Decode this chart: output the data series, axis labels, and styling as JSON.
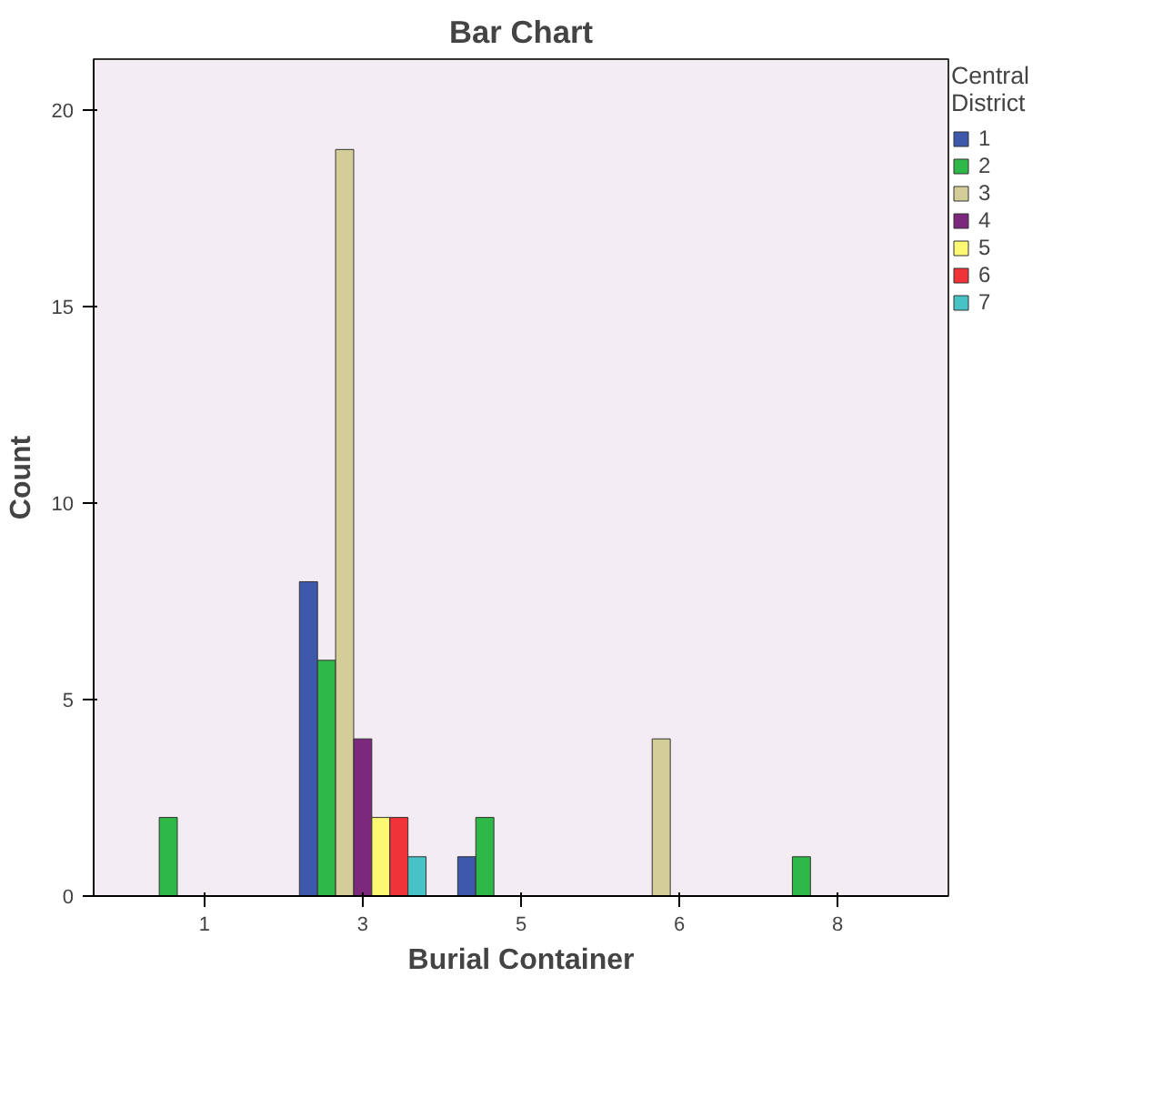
{
  "chart_data": {
    "type": "bar",
    "title": "Bar Chart",
    "xlabel": "Burial Container",
    "ylabel": "Count",
    "legend_title": "Central\nDistrict",
    "categories": [
      "1",
      "3",
      "5",
      "6",
      "8"
    ],
    "series": [
      {
        "name": "1",
        "color": "#3e58ac",
        "values": [
          null,
          8,
          1,
          null,
          null
        ]
      },
      {
        "name": "2",
        "color": "#2eb848",
        "values": [
          2,
          6,
          2,
          null,
          1
        ]
      },
      {
        "name": "3",
        "color": "#d3ce97",
        "values": [
          null,
          19,
          null,
          4,
          null
        ]
      },
      {
        "name": "4",
        "color": "#7c287d",
        "values": [
          null,
          4,
          null,
          null,
          null
        ]
      },
      {
        "name": "5",
        "color": "#fbf873",
        "values": [
          null,
          2,
          null,
          null,
          null
        ]
      },
      {
        "name": "6",
        "color": "#ef3338",
        "values": [
          null,
          2,
          null,
          null,
          null
        ]
      },
      {
        "name": "7",
        "color": "#48c2c5",
        "values": [
          null,
          1,
          null,
          null,
          null
        ]
      }
    ],
    "ylim": [
      0,
      21.3
    ],
    "yticks": [
      0,
      5,
      10,
      15,
      20
    ],
    "grid": false,
    "legend": "right"
  }
}
